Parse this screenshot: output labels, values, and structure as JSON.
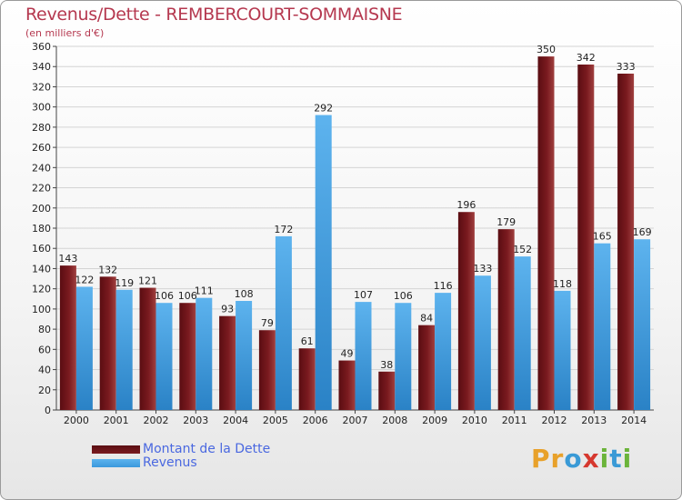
{
  "title": "Revenus/Dette - REMBERCOURT-SOMMAISNE",
  "subtitle": "(en milliers d'€)",
  "legend": {
    "debt_label": "Montant de la Dette",
    "revenue_label": "Revenus"
  },
  "logo": {
    "letters": [
      "P",
      "r",
      "o",
      "x",
      "i",
      "t",
      "i"
    ],
    "colors": [
      "#e8a12a",
      "#e8a12a",
      "#3a9ad6",
      "#d6382f",
      "#6bb43a",
      "#3a9ad6",
      "#6bb43a"
    ]
  },
  "colors": {
    "debt": "#7a1a1f",
    "revenue": "#3a98dc"
  },
  "chart_data": {
    "type": "bar",
    "title": "Revenus/Dette - REMBERCOURT-SOMMAISNE",
    "subtitle": "(en milliers d'€)",
    "categories": [
      "2000",
      "2001",
      "2002",
      "2003",
      "2004",
      "2005",
      "2006",
      "2007",
      "2008",
      "2009",
      "2010",
      "2011",
      "2012",
      "2013",
      "2014"
    ],
    "series": [
      {
        "name": "Montant de la Dette",
        "values": [
          143,
          132,
          121,
          106,
          93,
          79,
          61,
          49,
          38,
          84,
          196,
          179,
          350,
          342,
          333
        ]
      },
      {
        "name": "Revenus",
        "values": [
          122,
          119,
          106,
          111,
          108,
          172,
          292,
          107,
          106,
          116,
          133,
          152,
          118,
          165,
          169
        ]
      }
    ],
    "ylim": [
      0,
      360
    ],
    "ytick_step": 20,
    "grid": true,
    "legend_position": "bottom-left"
  }
}
